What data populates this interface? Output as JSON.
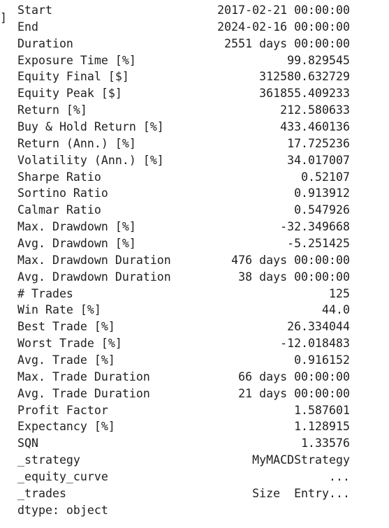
{
  "prompt_bracket": "]",
  "rows": [
    {
      "key": "Start",
      "value": "2017-02-21 00:00:00"
    },
    {
      "key": "End",
      "value": "2024-02-16 00:00:00"
    },
    {
      "key": "Duration",
      "value": "2551 days 00:00:00"
    },
    {
      "key": "Exposure Time [%]",
      "value": "99.829545"
    },
    {
      "key": "Equity Final [$]",
      "value": "312580.632729"
    },
    {
      "key": "Equity Peak [$]",
      "value": "361855.409233"
    },
    {
      "key": "Return [%]",
      "value": "212.580633"
    },
    {
      "key": "Buy & Hold Return [%]",
      "value": "433.460136"
    },
    {
      "key": "Return (Ann.) [%]",
      "value": "17.725236"
    },
    {
      "key": "Volatility (Ann.) [%]",
      "value": "34.017007"
    },
    {
      "key": "Sharpe Ratio",
      "value": "0.52107"
    },
    {
      "key": "Sortino Ratio",
      "value": "0.913912"
    },
    {
      "key": "Calmar Ratio",
      "value": "0.547926"
    },
    {
      "key": "Max. Drawdown [%]",
      "value": "-32.349668"
    },
    {
      "key": "Avg. Drawdown [%]",
      "value": "-5.251425"
    },
    {
      "key": "Max. Drawdown Duration",
      "value": "476 days 00:00:00"
    },
    {
      "key": "Avg. Drawdown Duration",
      "value": "38 days 00:00:00"
    },
    {
      "key": "# Trades",
      "value": "125"
    },
    {
      "key": "Win Rate [%]",
      "value": "44.0"
    },
    {
      "key": "Best Trade [%]",
      "value": "26.334044"
    },
    {
      "key": "Worst Trade [%]",
      "value": "-12.018483"
    },
    {
      "key": "Avg. Trade [%]",
      "value": "0.916152"
    },
    {
      "key": "Max. Trade Duration",
      "value": "66 days 00:00:00"
    },
    {
      "key": "Avg. Trade Duration",
      "value": "21 days 00:00:00"
    },
    {
      "key": "Profit Factor",
      "value": "1.587601"
    },
    {
      "key": "Expectancy [%]",
      "value": "1.128915"
    },
    {
      "key": "SQN",
      "value": "1.33576"
    },
    {
      "key": "_strategy",
      "value": "MyMACDStrategy"
    },
    {
      "key": "_equity_curve",
      "value": "..."
    },
    {
      "key": "_trades",
      "value": "Size  Entry..."
    }
  ],
  "dtype_line": "dtype: object"
}
